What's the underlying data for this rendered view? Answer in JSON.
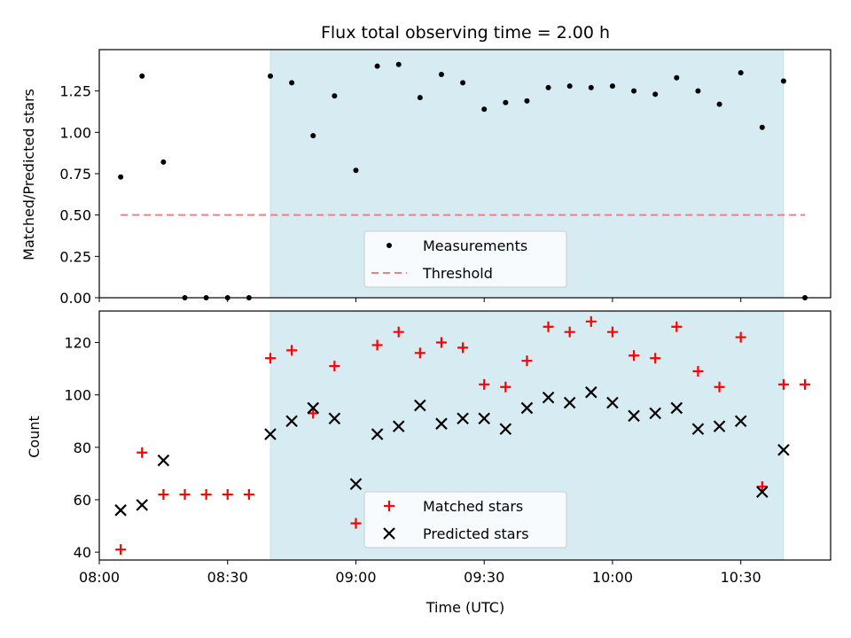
{
  "chart_data": [
    {
      "type": "scatter",
      "title": "Flux total observing time = 2.00 h",
      "xlabel": "",
      "ylabel": "Matched/Predicted stars",
      "xlim": [
        "08:00",
        "10:51"
      ],
      "ylim": [
        0,
        1.5
      ],
      "yticks": [
        "0.00",
        "0.25",
        "0.50",
        "0.75",
        "1.00",
        "1.25"
      ],
      "shaded_region": {
        "start": "08:40",
        "end": "10:40",
        "color": "#add8e6"
      },
      "legend": {
        "placement": "lower-center"
      },
      "series": [
        {
          "name": "Measurements",
          "marker": "dot",
          "color": "#000000",
          "points": [
            [
              "08:05",
              0.73
            ],
            [
              "08:10",
              1.34
            ],
            [
              "08:15",
              0.82
            ],
            [
              "08:20",
              0.0
            ],
            [
              "08:25",
              0.0
            ],
            [
              "08:30",
              0.0
            ],
            [
              "08:35",
              0.0
            ],
            [
              "08:40",
              1.34
            ],
            [
              "08:45",
              1.3
            ],
            [
              "08:50",
              0.98
            ],
            [
              "08:55",
              1.22
            ],
            [
              "09:00",
              0.77
            ],
            [
              "09:05",
              1.4
            ],
            [
              "09:10",
              1.41
            ],
            [
              "09:15",
              1.21
            ],
            [
              "09:20",
              1.35
            ],
            [
              "09:25",
              1.3
            ],
            [
              "09:30",
              1.14
            ],
            [
              "09:35",
              1.18
            ],
            [
              "09:40",
              1.19
            ],
            [
              "09:45",
              1.27
            ],
            [
              "09:50",
              1.28
            ],
            [
              "09:55",
              1.27
            ],
            [
              "10:00",
              1.28
            ],
            [
              "10:05",
              1.25
            ],
            [
              "10:10",
              1.23
            ],
            [
              "10:15",
              1.33
            ],
            [
              "10:20",
              1.25
            ],
            [
              "10:25",
              1.17
            ],
            [
              "10:30",
              1.36
            ],
            [
              "10:35",
              1.03
            ],
            [
              "10:40",
              1.31
            ],
            [
              "10:45",
              0.0
            ]
          ]
        },
        {
          "name": "Threshold",
          "marker": "dashed-line",
          "color": "#f08080",
          "points": [
            [
              "08:05",
              0.5
            ],
            [
              "10:45",
              0.5
            ]
          ]
        }
      ]
    },
    {
      "type": "scatter",
      "xlabel": "Time (UTC)",
      "ylabel": "Count",
      "xlim": [
        "08:00",
        "10:51"
      ],
      "ylim": [
        37,
        132
      ],
      "xticks": [
        "08:00",
        "08:30",
        "09:00",
        "09:30",
        "10:00",
        "10:30"
      ],
      "yticks": [
        "40",
        "60",
        "80",
        "100",
        "120"
      ],
      "shaded_region": {
        "start": "08:40",
        "end": "10:40",
        "color": "#add8e6"
      },
      "legend": {
        "placement": "lower-center"
      },
      "series": [
        {
          "name": "Matched stars",
          "marker": "plus",
          "color": "#ff0000",
          "points": [
            [
              "08:05",
              41
            ],
            [
              "08:10",
              78
            ],
            [
              "08:15",
              62
            ],
            [
              "08:20",
              62
            ],
            [
              "08:25",
              62
            ],
            [
              "08:30",
              62
            ],
            [
              "08:35",
              62
            ],
            [
              "08:40",
              114
            ],
            [
              "08:45",
              117
            ],
            [
              "08:50",
              93
            ],
            [
              "08:55",
              111
            ],
            [
              "09:00",
              51
            ],
            [
              "09:05",
              119
            ],
            [
              "09:10",
              124
            ],
            [
              "09:15",
              116
            ],
            [
              "09:20",
              120
            ],
            [
              "09:25",
              118
            ],
            [
              "09:30",
              104
            ],
            [
              "09:35",
              103
            ],
            [
              "09:40",
              113
            ],
            [
              "09:45",
              126
            ],
            [
              "09:50",
              124
            ],
            [
              "09:55",
              128
            ],
            [
              "10:00",
              124
            ],
            [
              "10:05",
              115
            ],
            [
              "10:10",
              114
            ],
            [
              "10:15",
              126
            ],
            [
              "10:20",
              109
            ],
            [
              "10:25",
              103
            ],
            [
              "10:30",
              122
            ],
            [
              "10:35",
              65
            ],
            [
              "10:40",
              104
            ],
            [
              "10:45",
              104
            ]
          ]
        },
        {
          "name": "Predicted stars",
          "marker": "x",
          "color": "#000000",
          "points": [
            [
              "08:05",
              56
            ],
            [
              "08:10",
              58
            ],
            [
              "08:15",
              75
            ],
            [
              "08:40",
              85
            ],
            [
              "08:45",
              90
            ],
            [
              "08:50",
              95
            ],
            [
              "08:55",
              91
            ],
            [
              "09:00",
              66
            ],
            [
              "09:05",
              85
            ],
            [
              "09:10",
              88
            ],
            [
              "09:15",
              96
            ],
            [
              "09:20",
              89
            ],
            [
              "09:25",
              91
            ],
            [
              "09:30",
              91
            ],
            [
              "09:35",
              87
            ],
            [
              "09:40",
              95
            ],
            [
              "09:45",
              99
            ],
            [
              "09:50",
              97
            ],
            [
              "09:55",
              101
            ],
            [
              "10:00",
              97
            ],
            [
              "10:05",
              92
            ],
            [
              "10:10",
              93
            ],
            [
              "10:15",
              95
            ],
            [
              "10:20",
              87
            ],
            [
              "10:25",
              88
            ],
            [
              "10:30",
              90
            ],
            [
              "10:35",
              63
            ],
            [
              "10:40",
              79
            ]
          ]
        }
      ]
    }
  ]
}
